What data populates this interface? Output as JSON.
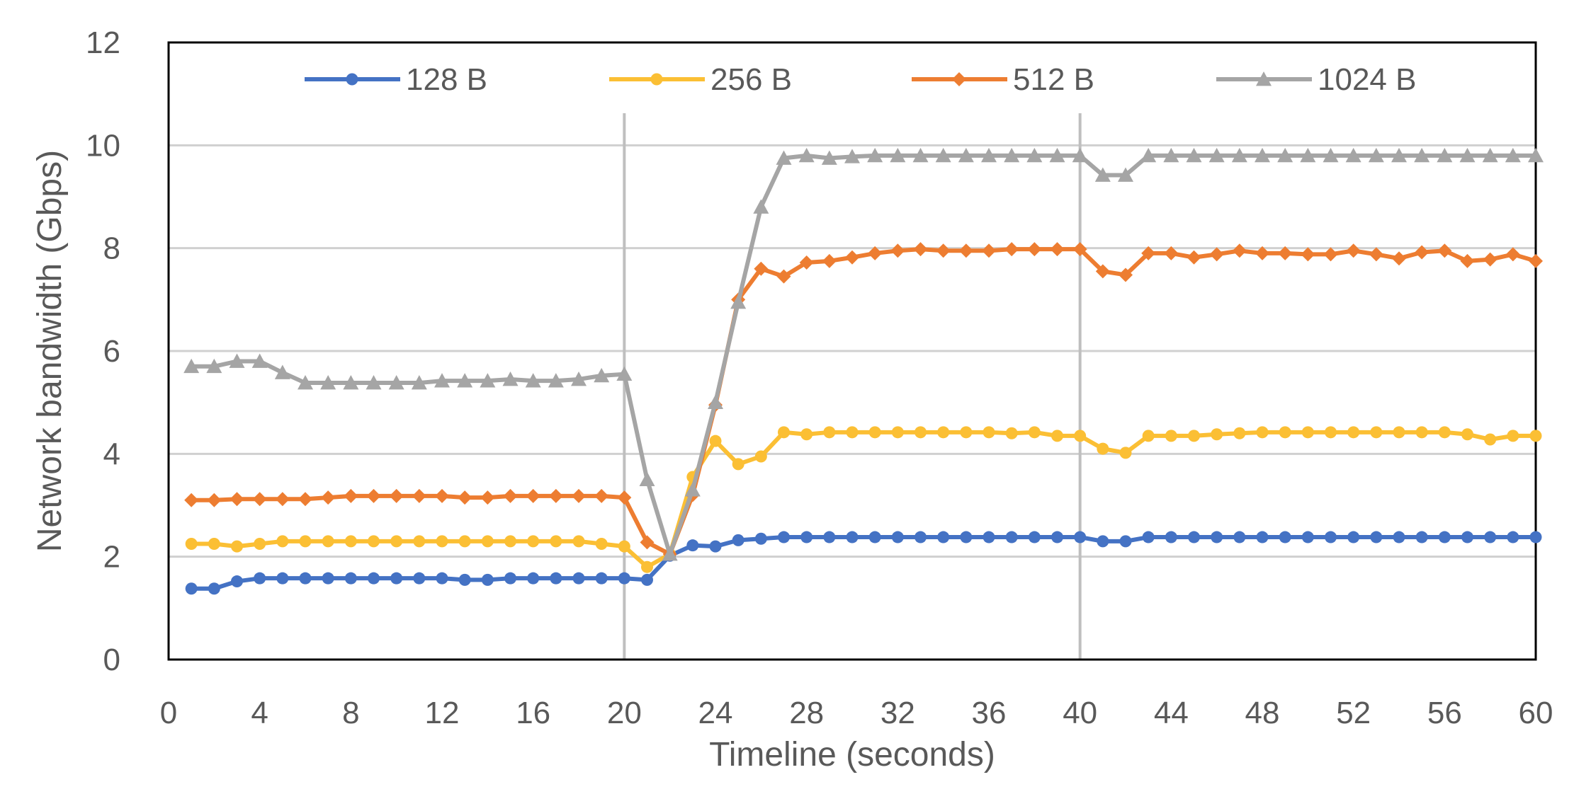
{
  "chart_data": {
    "type": "line",
    "title": "",
    "xlabel": "Timeline (seconds)",
    "ylabel": "Network bandwidth (Gbps)",
    "xlim": [
      0,
      60
    ],
    "ylim": [
      0,
      12
    ],
    "xticks": [
      0,
      4,
      8,
      12,
      16,
      20,
      24,
      28,
      32,
      36,
      40,
      44,
      48,
      52,
      56,
      60
    ],
    "yticks": [
      0,
      2,
      4,
      6,
      8,
      10,
      12
    ],
    "grid": "horizontal",
    "vertical_reference_lines": [
      20,
      40
    ],
    "legend_position": "top",
    "x": [
      1,
      2,
      3,
      4,
      5,
      6,
      7,
      8,
      9,
      10,
      11,
      12,
      13,
      14,
      15,
      16,
      17,
      18,
      19,
      20,
      21,
      22,
      23,
      24,
      25,
      26,
      27,
      28,
      29,
      30,
      31,
      32,
      33,
      34,
      35,
      36,
      37,
      38,
      39,
      40,
      41,
      42,
      43,
      44,
      45,
      46,
      47,
      48,
      49,
      50,
      51,
      52,
      53,
      54,
      55,
      56,
      57,
      58,
      59,
      60
    ],
    "series": [
      {
        "name": "128 B",
        "color": "#4472C4",
        "marker": "circle",
        "values": [
          1.38,
          1.38,
          1.52,
          1.58,
          1.58,
          1.58,
          1.58,
          1.58,
          1.58,
          1.58,
          1.58,
          1.58,
          1.55,
          1.55,
          1.58,
          1.58,
          1.58,
          1.58,
          1.58,
          1.58,
          1.55,
          2.02,
          2.22,
          2.2,
          2.32,
          2.35,
          2.38,
          2.38,
          2.38,
          2.38,
          2.38,
          2.38,
          2.38,
          2.38,
          2.38,
          2.38,
          2.38,
          2.38,
          2.38,
          2.38,
          2.3,
          2.3,
          2.38,
          2.38,
          2.38,
          2.38,
          2.38,
          2.38,
          2.38,
          2.38,
          2.38,
          2.38,
          2.38,
          2.38,
          2.38,
          2.38,
          2.38,
          2.38,
          2.38,
          2.38
        ]
      },
      {
        "name": "256 B",
        "color": "#FBBF34",
        "marker": "circle",
        "values": [
          2.25,
          2.25,
          2.2,
          2.25,
          2.3,
          2.3,
          2.3,
          2.3,
          2.3,
          2.3,
          2.3,
          2.3,
          2.3,
          2.3,
          2.3,
          2.3,
          2.3,
          2.3,
          2.25,
          2.2,
          1.8,
          2.05,
          3.55,
          4.25,
          3.8,
          3.95,
          4.42,
          4.38,
          4.42,
          4.42,
          4.42,
          4.42,
          4.42,
          4.42,
          4.42,
          4.42,
          4.4,
          4.42,
          4.35,
          4.35,
          4.1,
          4.02,
          4.35,
          4.35,
          4.35,
          4.38,
          4.4,
          4.42,
          4.42,
          4.42,
          4.42,
          4.42,
          4.42,
          4.42,
          4.42,
          4.42,
          4.38,
          4.28,
          4.35,
          4.35
        ]
      },
      {
        "name": "512 B",
        "color": "#ED7D31",
        "marker": "diamond",
        "values": [
          3.1,
          3.1,
          3.12,
          3.12,
          3.12,
          3.12,
          3.15,
          3.18,
          3.18,
          3.18,
          3.18,
          3.18,
          3.15,
          3.15,
          3.18,
          3.18,
          3.18,
          3.18,
          3.18,
          3.15,
          2.28,
          2.05,
          3.2,
          4.95,
          7.0,
          7.6,
          7.45,
          7.72,
          7.75,
          7.82,
          7.9,
          7.95,
          7.98,
          7.95,
          7.95,
          7.95,
          7.98,
          7.98,
          7.98,
          7.98,
          7.55,
          7.48,
          7.9,
          7.9,
          7.82,
          7.88,
          7.95,
          7.9,
          7.9,
          7.88,
          7.88,
          7.95,
          7.88,
          7.8,
          7.92,
          7.95,
          7.75,
          7.78,
          7.88,
          7.75
        ]
      },
      {
        "name": "1024 B",
        "color": "#A5A5A5",
        "marker": "triangle",
        "values": [
          5.7,
          5.7,
          5.8,
          5.8,
          5.58,
          5.38,
          5.38,
          5.38,
          5.38,
          5.38,
          5.38,
          5.42,
          5.42,
          5.42,
          5.45,
          5.42,
          5.42,
          5.45,
          5.52,
          5.55,
          3.5,
          2.05,
          3.3,
          5.0,
          6.95,
          8.8,
          9.75,
          9.8,
          9.75,
          9.78,
          9.8,
          9.8,
          9.8,
          9.8,
          9.8,
          9.8,
          9.8,
          9.8,
          9.8,
          9.8,
          9.42,
          9.42,
          9.8,
          9.8,
          9.8,
          9.8,
          9.8,
          9.8,
          9.8,
          9.8,
          9.8,
          9.8,
          9.8,
          9.8,
          9.8,
          9.8,
          9.8,
          9.8,
          9.8,
          9.8
        ]
      }
    ]
  }
}
